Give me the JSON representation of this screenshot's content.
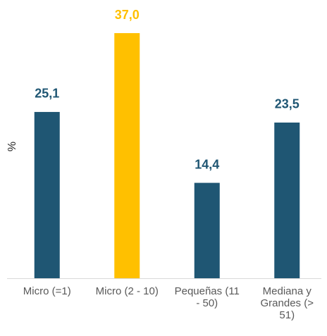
{
  "chart_data": {
    "type": "bar",
    "y_label": "%",
    "categories": [
      "Micro (=1)",
      "Micro (2 - 10)",
      "Pequeñas (11 - 50)",
      "Mediana y Grandes (> 51)"
    ],
    "values": [
      25.1,
      37.0,
      14.4,
      23.5
    ],
    "value_labels": [
      "25,1",
      "37,0",
      "14,4",
      "23,5"
    ],
    "colors": [
      "#1f5673",
      "#ffc000",
      "#1f5673",
      "#1f5673"
    ],
    "ylim": [
      0,
      42
    ]
  }
}
